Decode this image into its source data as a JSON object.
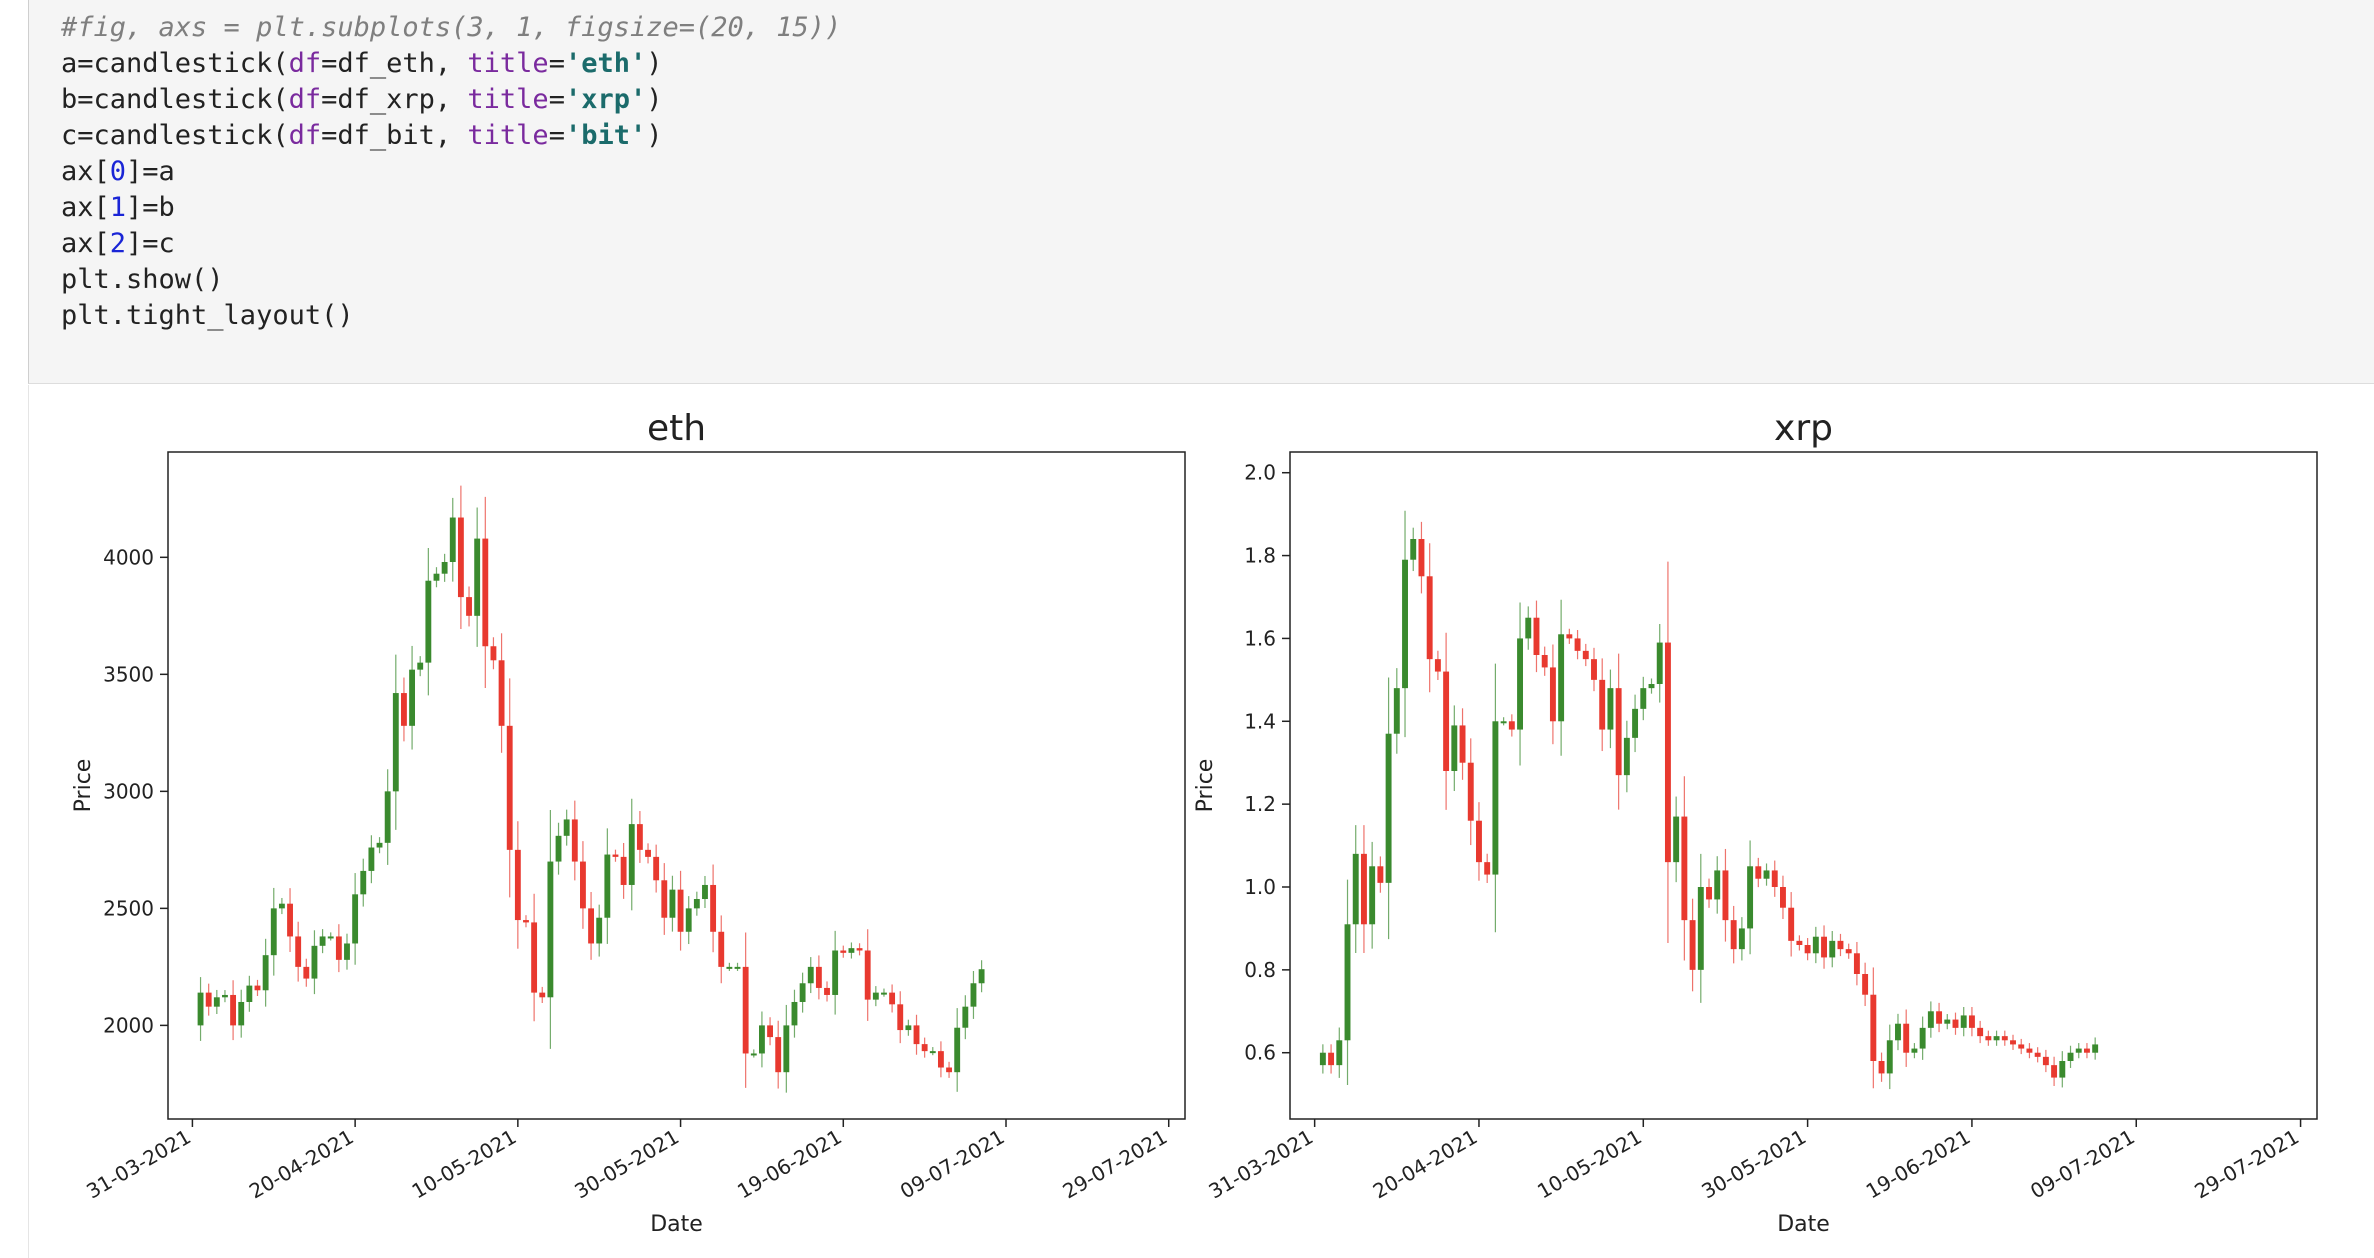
{
  "code": {
    "lines": [
      [
        {
          "t": "#fig, axs = plt.subplots(3, 1, figsize=(20, 15))",
          "c": "comment"
        }
      ],
      [
        {
          "t": "a=candlestick("
        },
        {
          "t": "df",
          "c": "kw"
        },
        {
          "t": "=df_eth, "
        },
        {
          "t": "title",
          "c": "kw"
        },
        {
          "t": "="
        },
        {
          "t": "'eth'",
          "c": "str"
        },
        {
          "t": ")"
        }
      ],
      [
        {
          "t": "b=candlestick("
        },
        {
          "t": "df",
          "c": "kw"
        },
        {
          "t": "=df_xrp, "
        },
        {
          "t": "title",
          "c": "kw"
        },
        {
          "t": "="
        },
        {
          "t": "'xrp'",
          "c": "str"
        },
        {
          "t": ")"
        }
      ],
      [
        {
          "t": "c=candlestick("
        },
        {
          "t": "df",
          "c": "kw"
        },
        {
          "t": "=df_bit, "
        },
        {
          "t": "title",
          "c": "kw"
        },
        {
          "t": "="
        },
        {
          "t": "'bit'",
          "c": "str"
        },
        {
          "t": ")"
        }
      ],
      [
        {
          "t": "ax["
        },
        {
          "t": "0",
          "c": "num"
        },
        {
          "t": "]=a"
        }
      ],
      [
        {
          "t": "ax["
        },
        {
          "t": "1",
          "c": "num"
        },
        {
          "t": "]=b"
        }
      ],
      [
        {
          "t": "ax["
        },
        {
          "t": "2",
          "c": "num"
        },
        {
          "t": "]=c"
        }
      ],
      [
        {
          "t": "plt.show()"
        }
      ],
      [
        {
          "t": "plt.tight_layout()"
        }
      ]
    ]
  },
  "colors": {
    "up": "#3a8a2e",
    "down": "#e8392f",
    "axis": "#222222"
  },
  "chart_data": [
    {
      "type": "candlestick",
      "title": "eth",
      "xlabel": "Date",
      "ylabel": "Price",
      "xlim": [
        "2021-03-28",
        "2021-07-31"
      ],
      "ylim": [
        1600,
        4450
      ],
      "yticks": [
        2000,
        2500,
        3000,
        3500,
        4000
      ],
      "ytick_labels": [
        "2000",
        "2500",
        "3000",
        "3500",
        "4000"
      ],
      "xticks": [
        "2021-03-31",
        "2021-04-20",
        "2021-05-10",
        "2021-05-30",
        "2021-06-19",
        "2021-07-09",
        "2021-07-29"
      ],
      "xtick_labels": [
        "31-03-2021",
        "20-04-2021",
        "10-05-2021",
        "30-05-2021",
        "19-06-2021",
        "09-07-2021",
        "29-07-2021"
      ],
      "close": [
        2140,
        2080,
        2120,
        2130,
        2000,
        2100,
        2170,
        2150,
        2300,
        2500,
        2520,
        2380,
        2250,
        2200,
        2340,
        2380,
        2380,
        2280,
        2350,
        2560,
        2660,
        2760,
        2780,
        3000,
        3420,
        3280,
        3520,
        3550,
        3900,
        3930,
        3980,
        4170,
        3830,
        3750,
        4080,
        3620,
        3560,
        3280,
        2750,
        2450,
        2440,
        2140,
        2120,
        2700,
        2810,
        2880,
        2700,
        2500,
        2350,
        2460,
        2730,
        2720,
        2600,
        2860,
        2750,
        2720,
        2620,
        2460,
        2580,
        2400,
        2500,
        2540,
        2600,
        2400,
        2250,
        2250,
        2250,
        1880,
        1880,
        2000,
        1950,
        1800,
        2000,
        2100,
        2180,
        2250,
        2160,
        2130,
        2320,
        2310,
        2330,
        2320,
        2110,
        2140,
        2140,
        2090,
        1980,
        2000,
        1920,
        1890,
        1890,
        1820,
        1800,
        1990,
        2080,
        2180,
        2240
      ],
      "open": [
        2000,
        2140,
        2080,
        2120,
        2130,
        2000,
        2100,
        2170,
        2150,
        2300,
        2500,
        2520,
        2380,
        2250,
        2200,
        2340,
        2380,
        2380,
        2280,
        2350,
        2560,
        2660,
        2760,
        2780,
        3000,
        3420,
        3280,
        3520,
        3550,
        3900,
        3930,
        3980,
        4170,
        3830,
        3750,
        4080,
        3620,
        3560,
        3280,
        2750,
        2450,
        2440,
        2140,
        2120,
        2700,
        2810,
        2880,
        2700,
        2500,
        2350,
        2460,
        2730,
        2720,
        2600,
        2860,
        2750,
        2720,
        2620,
        2460,
        2580,
        2400,
        2500,
        2540,
        2600,
        2400,
        2250,
        2250,
        2250,
        1880,
        1880,
        2000,
        1950,
        1800,
        2000,
        2100,
        2180,
        2250,
        2160,
        2130,
        2320,
        2310,
        2330,
        2320,
        2110,
        2140,
        2140,
        2090,
        1980,
        2000,
        1920,
        1890,
        1890,
        1820,
        1800,
        1990,
        2080,
        2180
      ]
    },
    {
      "type": "candlestick",
      "title": "xrp",
      "xlabel": "Date",
      "ylabel": "Price",
      "xlim": [
        "2021-03-28",
        "2021-07-31"
      ],
      "ylim": [
        0.44,
        2.05
      ],
      "yticks": [
        0.6,
        0.8,
        1.0,
        1.2,
        1.4,
        1.6,
        1.8,
        2.0
      ],
      "ytick_labels": [
        "0.6",
        "0.8",
        "1.0",
        "1.2",
        "1.4",
        "1.6",
        "1.8",
        "2.0"
      ],
      "xticks": [
        "2021-03-31",
        "2021-04-20",
        "2021-05-10",
        "2021-05-30",
        "2021-06-19",
        "2021-07-09",
        "2021-07-29"
      ],
      "xtick_labels": [
        "31-03-2021",
        "20-04-2021",
        "10-05-2021",
        "30-05-2021",
        "19-06-2021",
        "09-07-2021",
        "29-07-2021"
      ],
      "close": [
        0.6,
        0.57,
        0.63,
        0.91,
        1.08,
        0.91,
        1.05,
        1.01,
        1.37,
        1.48,
        1.79,
        1.84,
        1.75,
        1.55,
        1.52,
        1.28,
        1.39,
        1.3,
        1.16,
        1.06,
        1.03,
        1.4,
        1.4,
        1.38,
        1.6,
        1.65,
        1.56,
        1.53,
        1.4,
        1.61,
        1.6,
        1.57,
        1.55,
        1.5,
        1.38,
        1.48,
        1.27,
        1.36,
        1.43,
        1.48,
        1.49,
        1.59,
        1.06,
        1.17,
        0.92,
        0.8,
        1.0,
        0.97,
        1.04,
        0.92,
        0.85,
        0.9,
        1.05,
        1.02,
        1.04,
        1.0,
        0.95,
        0.87,
        0.86,
        0.84,
        0.88,
        0.83,
        0.87,
        0.85,
        0.84,
        0.79,
        0.74,
        0.58,
        0.55,
        0.63,
        0.67,
        0.6,
        0.61,
        0.66,
        0.7,
        0.67,
        0.68,
        0.66,
        0.69,
        0.66,
        0.64,
        0.63,
        0.64,
        0.63,
        0.62,
        0.61,
        0.6,
        0.59,
        0.57,
        0.54,
        0.58,
        0.6,
        0.61,
        0.6,
        0.62
      ],
      "open": [
        0.57,
        0.6,
        0.57,
        0.63,
        0.91,
        1.08,
        0.91,
        1.05,
        1.01,
        1.37,
        1.48,
        1.79,
        1.84,
        1.75,
        1.55,
        1.52,
        1.28,
        1.39,
        1.3,
        1.16,
        1.06,
        1.03,
        1.4,
        1.4,
        1.38,
        1.6,
        1.65,
        1.56,
        1.53,
        1.4,
        1.61,
        1.6,
        1.57,
        1.55,
        1.5,
        1.38,
        1.48,
        1.27,
        1.36,
        1.43,
        1.48,
        1.49,
        1.59,
        1.06,
        1.17,
        0.92,
        0.8,
        1.0,
        0.97,
        1.04,
        0.92,
        0.85,
        0.9,
        1.05,
        1.02,
        1.04,
        1.0,
        0.95,
        0.87,
        0.86,
        0.84,
        0.88,
        0.83,
        0.87,
        0.85,
        0.84,
        0.79,
        0.74,
        0.58,
        0.55,
        0.63,
        0.67,
        0.6,
        0.61,
        0.66,
        0.7,
        0.67,
        0.68,
        0.66,
        0.69,
        0.66,
        0.64,
        0.63,
        0.64,
        0.63,
        0.62,
        0.61,
        0.6,
        0.59,
        0.57,
        0.54,
        0.58,
        0.6,
        0.61,
        0.6
      ]
    }
  ]
}
